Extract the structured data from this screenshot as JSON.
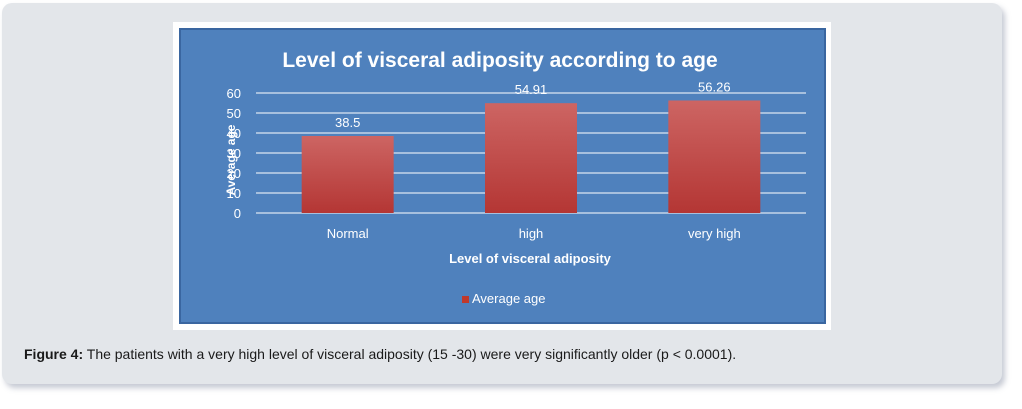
{
  "figure": {
    "caption_label": "Figure 4:",
    "caption_text": " The patients with a very high level of visceral adiposity (15 -30) were very significantly older (p < 0.0001)."
  },
  "chart_data": {
    "type": "bar",
    "title": "Level of visceral adiposity according to age",
    "xlabel": "Level of visceral adiposity",
    "ylabel": "Average age",
    "categories": [
      "Normal",
      "high",
      "very high"
    ],
    "series": [
      {
        "name": "Average age",
        "values": [
          38.5,
          54.91,
          56.26
        ]
      }
    ],
    "data_labels": [
      "38.5",
      "54.91",
      "56.26"
    ],
    "yticks": [
      0,
      10,
      20,
      30,
      40,
      50,
      60
    ],
    "ylim": [
      0,
      60
    ],
    "grid": true,
    "legend": "bottom",
    "colors": {
      "background": "#4f81bd",
      "bar_top": "#cd6563",
      "bar_bottom": "#b43634",
      "legend_marker": "#c0392b",
      "text": "#ffffff",
      "grid": "#ffffff"
    }
  }
}
